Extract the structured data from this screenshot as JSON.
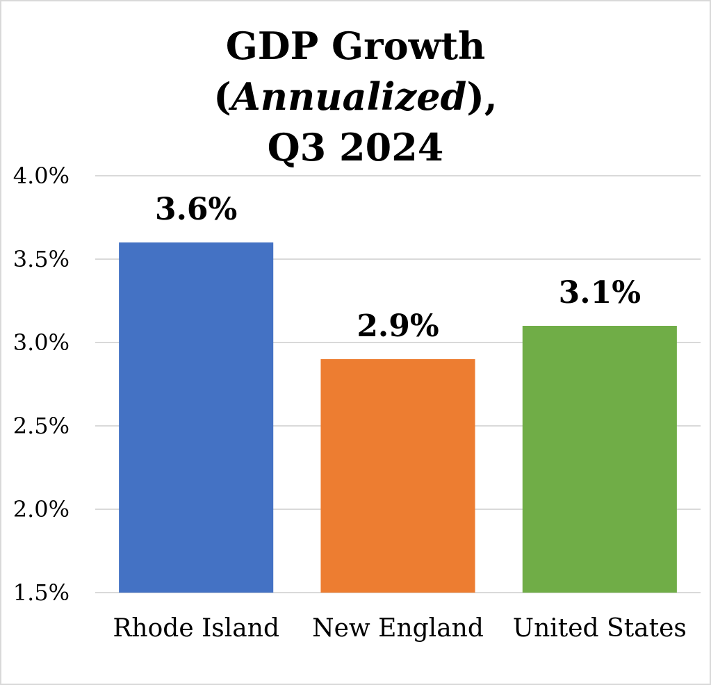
{
  "chart_data": {
    "type": "bar",
    "title": "GDP Growth (Annualized), Q3 2024",
    "title_parts": {
      "pre": "GDP Growth",
      "open_paren": "(",
      "italic": "Annualized",
      "close_paren": "),",
      "line3": "Q3 2024"
    },
    "xlabel": "",
    "ylabel": "",
    "categories": [
      "Rhode Island",
      "New England",
      "United States"
    ],
    "values": [
      3.6,
      2.9,
      3.1
    ],
    "data_labels": [
      "3.6%",
      "2.9%",
      "3.1%"
    ],
    "colors": [
      "#4472c4",
      "#ed7d31",
      "#70ad47"
    ],
    "ylim": [
      1.5,
      4.0
    ],
    "yticks": [
      1.5,
      2.0,
      2.5,
      3.0,
      3.5,
      4.0
    ],
    "ytick_labels": [
      "1.5%",
      "2.0%",
      "2.5%",
      "3.0%",
      "3.5%",
      "4.0%"
    ],
    "grid": true,
    "gridline_color": "#d9d9d9",
    "legend": "none"
  }
}
